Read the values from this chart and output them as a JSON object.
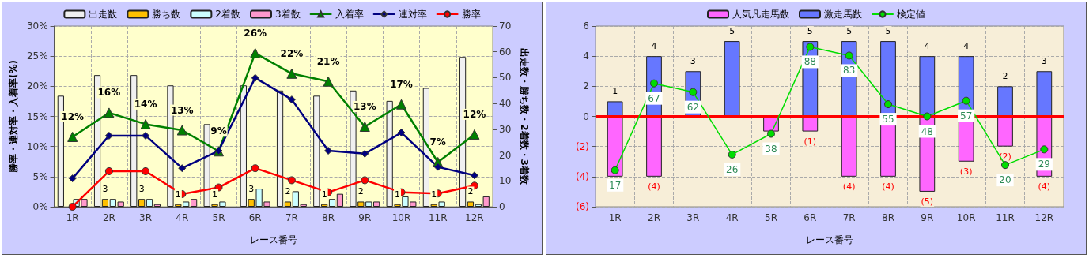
{
  "chart_data": [
    {
      "type": "bar",
      "xlabel": "レース番号",
      "ylabel": "勝率・連対率・入着率(%)",
      "y2label": "出走数・勝ち数・2着数・3着数",
      "categories": [
        "1R",
        "2R",
        "3R",
        "4R",
        "5R",
        "6R",
        "7R",
        "8R",
        "9R",
        "10R",
        "11R",
        "12R"
      ],
      "series": [
        {
          "name": "出走数",
          "axis": "y2",
          "color": "#f0f0f0",
          "values": [
            43,
            51,
            51,
            47,
            32,
            47,
            45,
            43,
            45,
            41,
            46,
            58
          ]
        },
        {
          "name": "勝ち数",
          "axis": "y2",
          "color": "#ffc000",
          "values": [
            0,
            3,
            3,
            1,
            1,
            3,
            2,
            1,
            2,
            1,
            1,
            2
          ],
          "value_labels": [
            null,
            "3",
            "3",
            "1",
            "1",
            "3",
            "2",
            "1",
            "2",
            "1",
            "1",
            "2"
          ]
        },
        {
          "name": "2着数",
          "axis": "y2",
          "color": "#ccffff",
          "values": [
            3,
            3,
            3,
            2,
            2,
            7,
            6,
            3,
            2,
            4,
            2,
            1
          ]
        },
        {
          "name": "3着数",
          "axis": "y2",
          "color": "#ff99cc",
          "values": [
            3,
            2,
            1,
            3,
            0,
            2,
            1,
            5,
            2,
            2,
            0,
            4
          ]
        },
        {
          "name": "入着率",
          "type": "line",
          "marker": "triangle",
          "color": "#008000",
          "values": [
            11.6,
            15.6,
            13.7,
            12.7,
            9.2,
            25.5,
            22.1,
            20.8,
            13.3,
            17.0,
            7.4,
            12.0
          ],
          "value_labels": [
            "12%",
            "16%",
            "14%",
            "13%",
            "9%",
            "26%",
            "22%",
            "21%",
            "13%",
            "17%",
            "7%",
            "12%"
          ]
        },
        {
          "name": "連対率",
          "type": "line",
          "marker": "diamond",
          "color": "#000080",
          "values": [
            4.7,
            11.8,
            11.8,
            6.4,
            9.3,
            21.4,
            17.8,
            9.3,
            8.8,
            12.3,
            6.6,
            5.2
          ]
        },
        {
          "name": "勝率",
          "type": "line",
          "marker": "circle",
          "color": "#ff0000",
          "values": [
            0,
            5.9,
            5.9,
            2.1,
            3.2,
            6.4,
            4.4,
            2.4,
            4.4,
            2.4,
            2.2,
            3.5
          ]
        }
      ],
      "ylim": [
        0,
        30
      ],
      "yticks": [
        {
          "value": 0,
          "label": "0%"
        },
        {
          "value": 5,
          "label": "5%"
        },
        {
          "value": 10,
          "label": "10%"
        },
        {
          "value": 15,
          "label": "15%"
        },
        {
          "value": 20,
          "label": "20%"
        },
        {
          "value": 25,
          "label": "25%"
        },
        {
          "value": 30,
          "label": "30%"
        }
      ],
      "y2lim": [
        0,
        70
      ],
      "y2ticks": [
        0,
        10,
        20,
        30,
        40,
        50,
        60,
        70
      ],
      "grid": true,
      "legend": "top"
    },
    {
      "type": "bar",
      "xlabel": "レース番号",
      "stacked": true,
      "categories": [
        "1R",
        "2R",
        "3R",
        "4R",
        "5R",
        "6R",
        "7R",
        "8R",
        "9R",
        "10R",
        "11R",
        "12R"
      ],
      "series": [
        {
          "name": "人気凡走馬数",
          "color": "#ff66ff",
          "values": [
            -4,
            -4,
            null,
            null,
            -1,
            -1,
            -4,
            -4,
            -5,
            -3,
            -2,
            -4
          ],
          "value_labels": [
            null,
            "(4)",
            null,
            null,
            null,
            "(1)",
            "(4)",
            "(4)",
            "(5)",
            "(3)",
            "(2)",
            "(4)"
          ]
        },
        {
          "name": "激走馬数",
          "color": "#6677ff",
          "values": [
            1,
            4,
            3,
            5,
            null,
            5,
            5,
            5,
            4,
            4,
            2,
            3
          ],
          "value_labels": [
            "1",
            "4",
            "3",
            "5",
            null,
            "5",
            "5",
            "5",
            "4",
            "4",
            "2",
            "3"
          ]
        },
        {
          "name": "検定値",
          "type": "line",
          "axis": "y2",
          "marker": "circle",
          "color": "#00dd00",
          "values": [
            17,
            67,
            62,
            26,
            38,
            88,
            83,
            55,
            48,
            57,
            20,
            29
          ],
          "value_labels": [
            "17",
            "67",
            "62",
            "26",
            "38",
            "88",
            "83",
            "55",
            "48",
            "57",
            "20",
            "29"
          ]
        }
      ],
      "ylim": [
        -6,
        6
      ],
      "yticks": [
        {
          "value": -6,
          "label": "(6)"
        },
        {
          "value": -4,
          "label": "(4)"
        },
        {
          "value": -2,
          "label": "(2)"
        },
        0,
        2,
        4,
        6
      ],
      "y2lim": [
        -4,
        100
      ],
      "tick_labels": "xy",
      "ref_lines": [
        {
          "axis": "y",
          "value": 0,
          "color": "#ff0000"
        }
      ],
      "grid": true,
      "legend": "top"
    }
  ]
}
